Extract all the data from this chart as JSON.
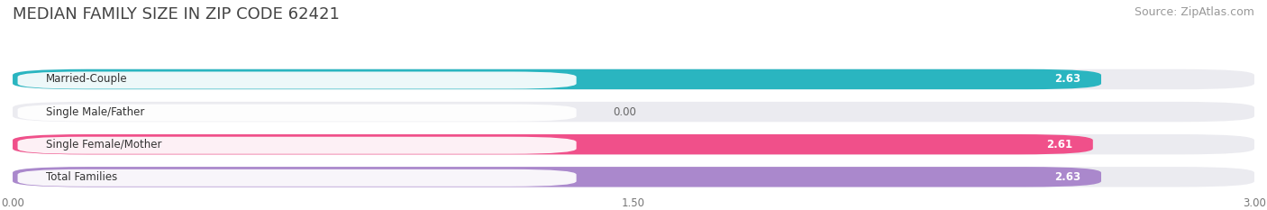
{
  "title": "MEDIAN FAMILY SIZE IN ZIP CODE 62421",
  "source": "Source: ZipAtlas.com",
  "categories": [
    "Married-Couple",
    "Single Male/Father",
    "Single Female/Mother",
    "Total Families"
  ],
  "values": [
    2.63,
    0.0,
    2.61,
    2.63
  ],
  "bar_colors": [
    "#2ab5c0",
    "#aab8e8",
    "#f0508a",
    "#aa88cc"
  ],
  "xlim": [
    0,
    3.0
  ],
  "xticks": [
    0.0,
    1.5,
    3.0
  ],
  "xtick_labels": [
    "0.00",
    "1.50",
    "3.00"
  ],
  "background_color": "#ffffff",
  "bar_background_color": "#ebebf0",
  "title_fontsize": 13,
  "source_fontsize": 9,
  "bar_height": 0.62,
  "bar_gap": 1.0,
  "figsize": [
    14.06,
    2.33
  ],
  "dpi": 100
}
